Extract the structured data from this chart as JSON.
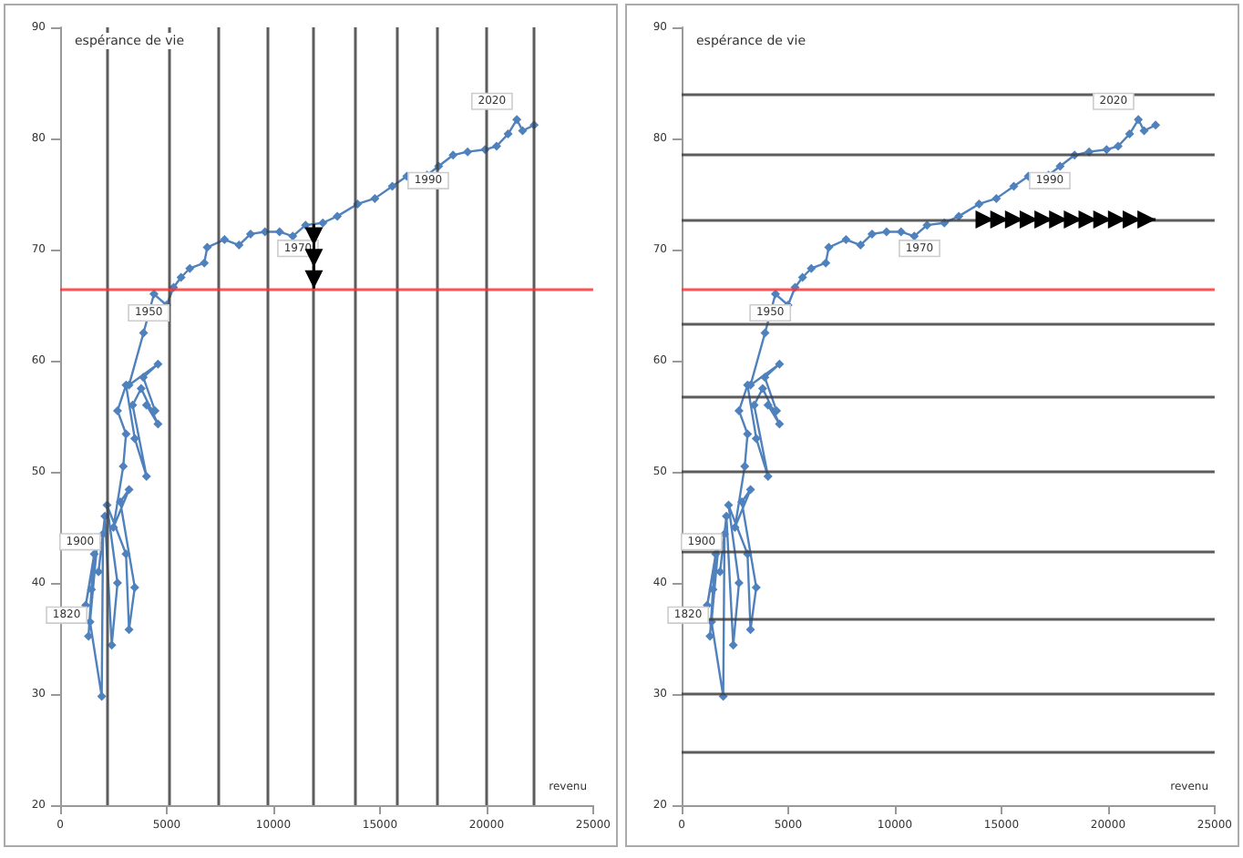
{
  "chart_data": [
    {
      "type": "line",
      "xlabel": "revenu",
      "ylabel": "espérance de vie",
      "color": "#4f81bd",
      "marker": "diamond",
      "line_style": "solid",
      "x": [
        1470,
        1330,
        1600,
        1200,
        1740,
        1400,
        1950,
        2010,
        1800,
        2100,
        2420,
        2690,
        2200,
        3090,
        3230,
        3500,
        2820,
        3230,
        2500,
        2960,
        3090,
        2690,
        3090,
        3500,
        4050,
        3400,
        3800,
        4590,
        4050,
        4450,
        3900,
        4590,
        3230,
        3910,
        4400,
        4990,
        5320,
        5670,
        6080,
        6760,
        6900,
        7710,
        8390,
        8930,
        9610,
        10290,
        10910,
        11510,
        12320,
        13000,
        13950,
        14760,
        15580,
        16260,
        17210,
        17750,
        18430,
        19110,
        19930,
        20470,
        21010,
        21420,
        21690,
        22230
      ],
      "values": [
        39.4,
        35.2,
        42.6,
        38,
        43.6,
        36.5,
        29.8,
        44.4,
        41,
        46,
        34.4,
        40,
        47,
        42.6,
        35.8,
        39.6,
        47.3,
        48.4,
        45,
        50.5,
        53.4,
        55.5,
        57.8,
        53,
        49.6,
        56,
        57.5,
        54.3,
        56,
        55.5,
        58.5,
        59.7,
        57.8,
        62.5,
        66,
        65,
        66.6,
        67.5,
        68.3,
        68.8,
        70.2,
        70.9,
        70.4,
        71.4,
        71.6,
        71.6,
        71.2,
        72.2,
        72.4,
        73,
        74.1,
        74.6,
        75.7,
        76.6,
        76.7,
        77.5,
        78.5,
        78.8,
        79,
        79.3,
        80.4,
        81.7,
        80.7,
        81.2
      ],
      "xlim": [
        0,
        25000
      ],
      "xticks": [
        0,
        5000,
        10000,
        15000,
        20000,
        25000
      ],
      "ylim": [
        20,
        90
      ],
      "yticks": [
        20,
        30,
        40,
        50,
        60,
        70,
        80,
        90
      ],
      "ref_lines": [
        {
          "axis": "x",
          "value": 2200,
          "color": "#404040"
        },
        {
          "axis": "x",
          "value": 5100,
          "color": "#404040"
        },
        {
          "axis": "x",
          "value": 7400,
          "color": "#404040"
        },
        {
          "axis": "x",
          "value": 9700,
          "color": "#404040"
        },
        {
          "axis": "x",
          "value": 11900,
          "color": "#404040"
        },
        {
          "axis": "x",
          "value": 13800,
          "color": "#404040"
        },
        {
          "axis": "x",
          "value": 15800,
          "color": "#404040"
        },
        {
          "axis": "x",
          "value": 17700,
          "color": "#404040"
        },
        {
          "axis": "x",
          "value": 20000,
          "color": "#404040"
        },
        {
          "axis": "x",
          "value": 22200,
          "color": "#404040"
        },
        {
          "axis": "y",
          "value": 66.5,
          "color": "#ff3333"
        }
      ],
      "annotations": [
        {
          "text": "1820",
          "x": 1470,
          "y": 39.4
        },
        {
          "text": "1900",
          "x": 2100,
          "y": 46
        },
        {
          "text": "1950",
          "x": 5320,
          "y": 66.6
        },
        {
          "text": "1970",
          "x": 12320,
          "y": 72.4
        },
        {
          "text": "1990",
          "x": 18430,
          "y": 78.5
        },
        {
          "text": "2020",
          "x": 21420,
          "y": 81.7
        }
      ]
    },
    {
      "type": "line",
      "xlabel": "revenu",
      "ylabel": "espérance de vie",
      "color": "#4f81bd",
      "marker": "diamond",
      "line_style": "solid",
      "x": [
        1470,
        1330,
        1600,
        1200,
        1740,
        1400,
        1950,
        2010,
        1800,
        2100,
        2420,
        2690,
        2200,
        3090,
        3230,
        3500,
        2820,
        3230,
        2500,
        2960,
        3090,
        2690,
        3090,
        3500,
        4050,
        3400,
        3800,
        4590,
        4050,
        4450,
        3900,
        4590,
        3230,
        3910,
        4400,
        4990,
        5320,
        5670,
        6080,
        6760,
        6900,
        7710,
        8390,
        8930,
        9610,
        10290,
        10910,
        11510,
        12320,
        13000,
        13950,
        14760,
        15580,
        16260,
        17210,
        17750,
        18430,
        19110,
        19930,
        20470,
        21010,
        21420,
        21690,
        22230
      ],
      "values": [
        39.4,
        35.2,
        42.6,
        38,
        43.6,
        36.5,
        29.8,
        44.4,
        41,
        46,
        34.4,
        40,
        47,
        42.6,
        35.8,
        39.6,
        47.3,
        48.4,
        45,
        50.5,
        53.4,
        55.5,
        57.8,
        53,
        49.6,
        56,
        57.5,
        54.3,
        56,
        55.5,
        58.5,
        59.7,
        57.8,
        62.5,
        66,
        65,
        66.6,
        67.5,
        68.3,
        68.8,
        70.2,
        70.9,
        70.4,
        71.4,
        71.6,
        71.6,
        71.2,
        72.2,
        72.4,
        73,
        74.1,
        74.6,
        75.7,
        76.6,
        76.7,
        77.5,
        78.5,
        78.8,
        79,
        79.3,
        80.4,
        81.7,
        80.7,
        81.2
      ],
      "xlim": [
        0,
        25000
      ],
      "xticks": [
        0,
        5000,
        10000,
        15000,
        20000,
        25000
      ],
      "ylim": [
        20,
        90
      ],
      "yticks": [
        20,
        30,
        40,
        50,
        60,
        70,
        80,
        90
      ],
      "ref_lines": [
        {
          "axis": "y",
          "value": 84,
          "color": "#404040"
        },
        {
          "axis": "y",
          "value": 78.5,
          "color": "#404040"
        },
        {
          "axis": "y",
          "value": 72.7,
          "color": "#404040"
        },
        {
          "axis": "y",
          "value": 66.5,
          "color": "#ff3333"
        },
        {
          "axis": "y",
          "value": 63.4,
          "color": "#404040"
        },
        {
          "axis": "y",
          "value": 56.8,
          "color": "#404040"
        },
        {
          "axis": "y",
          "value": 50,
          "color": "#404040"
        },
        {
          "axis": "y",
          "value": 42.8,
          "color": "#404040"
        },
        {
          "axis": "y",
          "value": 36.8,
          "color": "#404040"
        },
        {
          "axis": "y",
          "value": 30,
          "color": "#404040"
        },
        {
          "axis": "y",
          "value": 24.8,
          "color": "#404040"
        }
      ],
      "annotations": [
        {
          "text": "1820",
          "x": 1470,
          "y": 39.4
        },
        {
          "text": "1900",
          "x": 2100,
          "y": 46
        },
        {
          "text": "1950",
          "x": 5320,
          "y": 66.6
        },
        {
          "text": "1970",
          "x": 12320,
          "y": 72.4
        },
        {
          "text": "1990",
          "x": 18430,
          "y": 78.5
        },
        {
          "text": "2020",
          "x": 21420,
          "y": 81.7
        }
      ]
    }
  ]
}
